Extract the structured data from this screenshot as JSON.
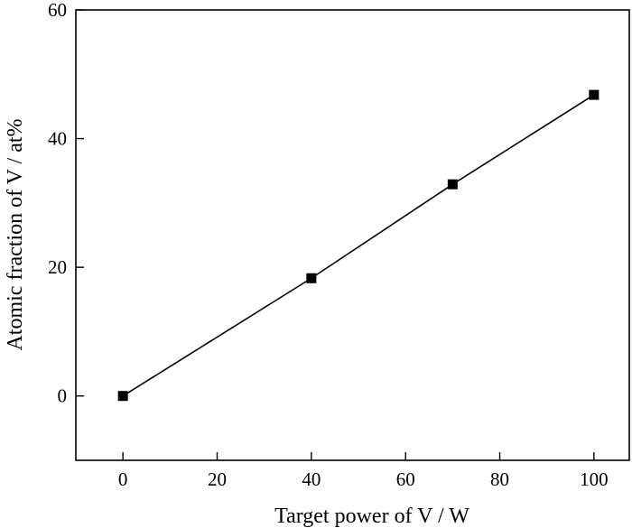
{
  "chart_data": {
    "type": "line",
    "title": "",
    "xlabel": "Target power of V / W",
    "ylabel": "Atomic fraction of V / at%",
    "xlim": [
      -10,
      107.5
    ],
    "ylim": [
      -10,
      60
    ],
    "xticks": [
      0,
      20,
      40,
      60,
      80,
      100
    ],
    "yticks": [
      0,
      20,
      40,
      60
    ],
    "xtick_labels": [
      "0",
      "20",
      "40",
      "60",
      "80",
      "100"
    ],
    "ytick_labels": [
      "0",
      "20",
      "40",
      "60"
    ],
    "grid": false,
    "series": [
      {
        "x": [
          0,
          40,
          70,
          100
        ],
        "y": [
          0.0,
          18.3,
          32.9,
          46.8
        ],
        "marker": "square",
        "line": "solid",
        "color": "#000000"
      }
    ]
  }
}
